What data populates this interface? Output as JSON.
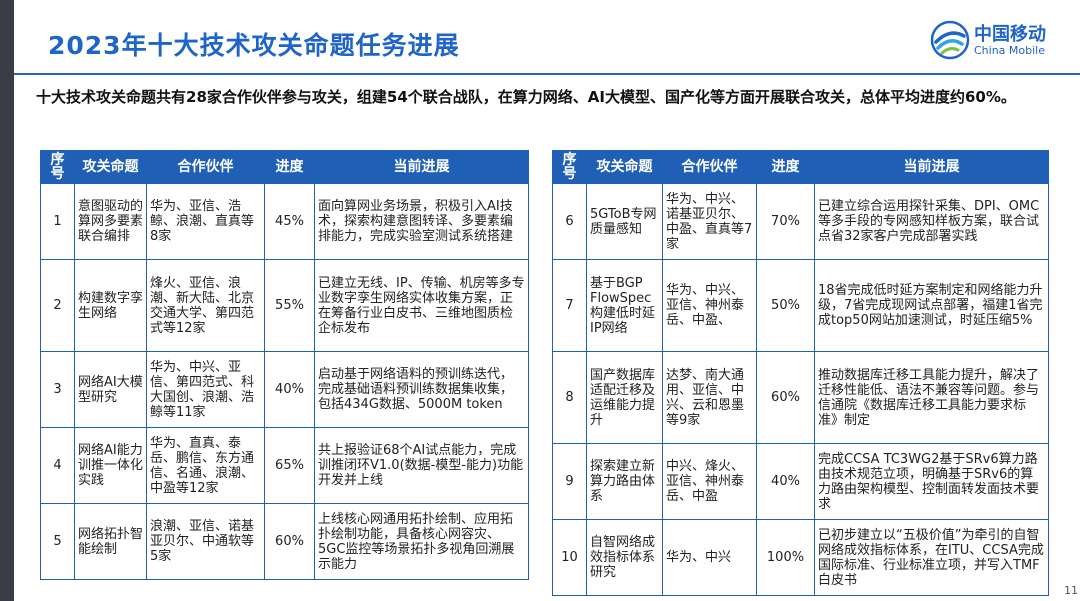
{
  "title": "2023年十大技术攻关命题任务进展",
  "logo": {
    "cn": "中国移动",
    "en": "China Mobile",
    "icon": "china-mobile-logo-icon",
    "color": "#1f64c8"
  },
  "summary": "十大技术攻关命题共有28家合作伙伴参与攻关，组建54个联合战队，在算力网络、AI大模型、国产化等方面开展联合攻关，总体平均进度约60%。",
  "headers": {
    "no": "序号",
    "topic": "攻关命题",
    "partners": "合作伙伴",
    "progress": "进度",
    "status": "当前进展"
  },
  "rows": [
    {
      "no": "1",
      "topic": "意图驱动的算网多要素联合编排",
      "partners": "华为、亚信、浩鲸、浪潮、直真等8家",
      "progress": "45%",
      "status": "面向算网业务场景，积极引入AI技术，探索构建意图转译、多要素编排能力，完成实验室测试系统搭建"
    },
    {
      "no": "2",
      "topic": "构建数字孪生网络",
      "partners": "烽火、亚信、浪潮、新大陆、北京交通大学、第四范式等12家",
      "progress": "55%",
      "status": "已建立无线、IP、传输、机房等多专业数字孪生网络实体收集方案，正在筹备行业白皮书、三维地图质检企标发布"
    },
    {
      "no": "3",
      "topic": "网络AI大模型研究",
      "partners": "华为、中兴、亚信、第四范式、科大国创、浪潮、浩鲸等11家",
      "progress": "40%",
      "status": "启动基于网络语料的预训练迭代，完成基础语料预训练数据集收集，包括434G数据、5000M token"
    },
    {
      "no": "4",
      "topic": "网络AI能力训推一体化实践",
      "partners": "华为、直真、泰岳、鹏信、东方通信、名通、浪潮、中盈等12家",
      "progress": "65%",
      "status": "共上报验证68个AI试点能力，完成训推闭环V1.0(数据-模型-能力)功能开发并上线"
    },
    {
      "no": "5",
      "topic": "网络拓扑智能绘制",
      "partners": "浪潮、亚信、诺基亚贝尔、中通软等5家",
      "progress": "60%",
      "status": "上线核心网通用拓扑绘制、应用拓扑绘制功能，具备核心网容灾、5GC监控等场景拓扑多视角回溯展示能力"
    },
    {
      "no": "6",
      "topic": "5GToB专网质量感知",
      "partners": "华为、中兴、诺基亚贝尔、中盈、直真等7家",
      "progress": "70%",
      "status": "已建立综合运用探针采集、DPI、OMC等多手段的专网感知样板方案，联合试点省32家客户完成部署实践"
    },
    {
      "no": "7",
      "topic": "基于BGP FlowSpec构建低时延IP网络",
      "partners": "华为、中兴、亚信、神州泰岳、中盈、",
      "progress": "50%",
      "status": "18省完成低时延方案制定和网络能力升级，7省完成现网试点部署，福建1省完成top50网站加速测试，时延压缩5%"
    },
    {
      "no": "8",
      "topic": "国产数据库适配迁移及运维能力提升",
      "partners": "达梦、南大通用、亚信、中兴、云和恩墨等9家",
      "progress": "60%",
      "status": "推动数据库迁移工具能力提升，解决了迁移性能低、语法不兼容等问题。参与信通院《数据库迁移工具能力要求标准》制定"
    },
    {
      "no": "9",
      "topic": "探索建立新算力路由体系",
      "partners": "中兴、烽火、亚信、神州泰岳、中盈",
      "progress": "40%",
      "status": "完成CCSA TC3WG2基于SRv6算力路由技术规范立项，明确基于SRv6的算力路由架构模型、控制面转发面技术要求"
    },
    {
      "no": "10",
      "topic": "自智网络成效指标体系研究",
      "partners": "华为、中兴",
      "progress": "100%",
      "status": "已初步建立以“五极价值”为牵引的自智网络成效指标体系，在ITU、CCSA完成国际标准、行业标准立项，并写入TMF白皮书"
    }
  ],
  "page_number": "11"
}
